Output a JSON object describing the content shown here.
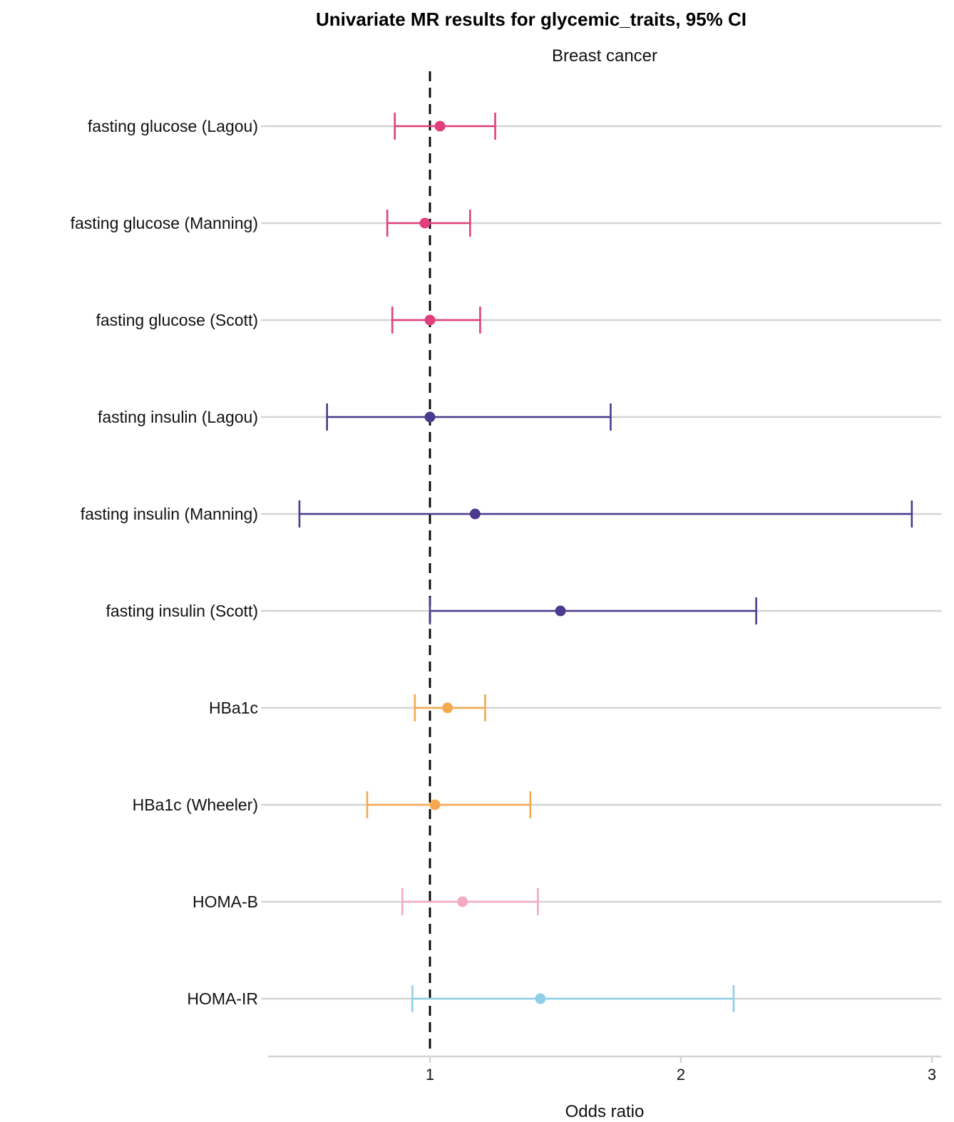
{
  "chart_data": {
    "type": "forest",
    "title": "Univariate MR results for glycemic_traits, 95% CI",
    "subtitle": "Breast cancer",
    "xlabel": "Odds ratio",
    "ylabel": "",
    "xlim": [
      0.36,
      3.05
    ],
    "x_ticks": [
      1,
      2,
      3
    ],
    "reference_line": 1,
    "grid": true,
    "rows": [
      {
        "label": "fasting glucose (Lagou)",
        "or": 1.04,
        "lower": 0.86,
        "upper": 1.26,
        "color": "#E03E7C"
      },
      {
        "label": "fasting glucose (Manning)",
        "or": 0.98,
        "lower": 0.83,
        "upper": 1.16,
        "color": "#E03E7C"
      },
      {
        "label": "fasting glucose (Scott)",
        "or": 1.0,
        "lower": 0.85,
        "upper": 1.2,
        "color": "#E03E7C"
      },
      {
        "label": "fasting insulin (Lagou)",
        "or": 1.0,
        "lower": 0.59,
        "upper": 1.72,
        "color": "#4B3A8E"
      },
      {
        "label": "fasting insulin (Manning)",
        "or": 1.18,
        "lower": 0.48,
        "upper": 2.92,
        "color": "#4B3A8E"
      },
      {
        "label": "fasting insulin (Scott)",
        "or": 1.52,
        "lower": 1.0,
        "upper": 2.3,
        "color": "#4B3A8E"
      },
      {
        "label": "HBa1c",
        "or": 1.07,
        "lower": 0.94,
        "upper": 1.22,
        "color": "#F5A84E"
      },
      {
        "label": "HBa1c (Wheeler)",
        "or": 1.02,
        "lower": 0.75,
        "upper": 1.4,
        "color": "#F5A84E"
      },
      {
        "label": "HOMA-B",
        "or": 1.13,
        "lower": 0.89,
        "upper": 1.43,
        "color": "#F3A9C3"
      },
      {
        "label": "HOMA-IR",
        "or": 1.44,
        "lower": 0.93,
        "upper": 2.21,
        "color": "#8FD0E8"
      }
    ]
  }
}
